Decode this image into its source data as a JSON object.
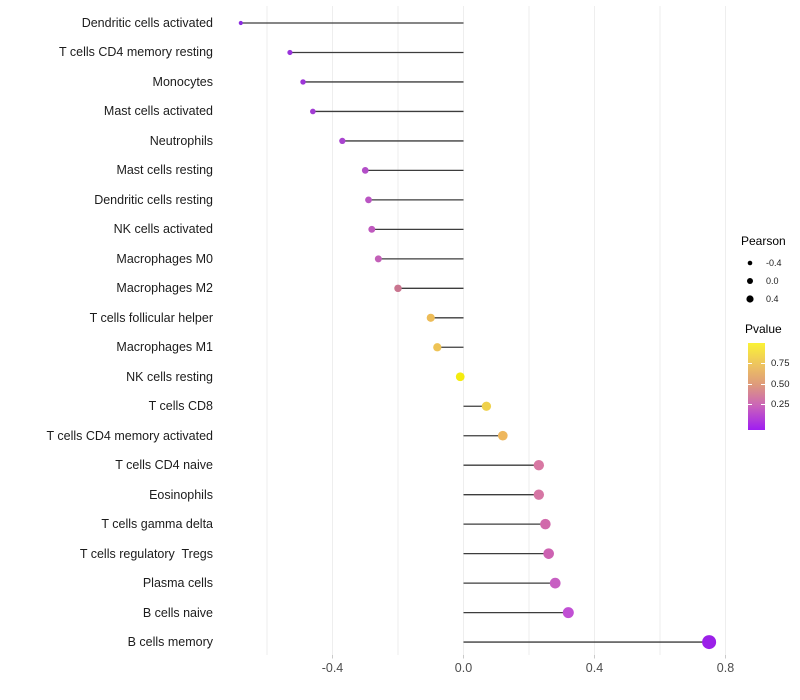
{
  "chart_data": {
    "type": "scatter",
    "variant": "lollipop",
    "title": "",
    "xlabel": "",
    "ylabel": "",
    "xlim": [
      -0.74,
      0.86
    ],
    "x_ticks": [
      -0.4,
      0.0,
      0.4,
      0.8
    ],
    "x_tick_labels": [
      "-0.4",
      "0.0",
      "0.4",
      "0.8"
    ],
    "gridline_step": 0.2,
    "grid": "vertical-only",
    "baseline": 0.0,
    "rows": [
      {
        "label": "Dendritic cells activated",
        "pearson": -0.68,
        "color": "#8b2ce0"
      },
      {
        "label": "T cells CD4 memory resting",
        "pearson": -0.53,
        "color": "#9933db"
      },
      {
        "label": "Monocytes",
        "pearson": -0.49,
        "color": "#9d36d8"
      },
      {
        "label": "Mast cells activated",
        "pearson": -0.46,
        "color": "#a23cd4"
      },
      {
        "label": "Neutrophils",
        "pearson": -0.37,
        "color": "#a944cf"
      },
      {
        "label": "Mast cells resting",
        "pearson": -0.3,
        "color": "#b34ec8"
      },
      {
        "label": "Dendritic cells resting",
        "pearson": -0.29,
        "color": "#ba55c3"
      },
      {
        "label": "NK cells activated",
        "pearson": -0.28,
        "color": "#bf59be"
      },
      {
        "label": "Macrophages M0",
        "pearson": -0.26,
        "color": "#c360b8"
      },
      {
        "label": "Macrophages M2",
        "pearson": -0.2,
        "color": "#c9758f"
      },
      {
        "label": "T cells follicular helper",
        "pearson": -0.1,
        "color": "#edbc58"
      },
      {
        "label": "Macrophages M1",
        "pearson": -0.08,
        "color": "#eec355"
      },
      {
        "label": "NK cells resting",
        "pearson": -0.01,
        "color": "#f4ec0e"
      },
      {
        "label": "T cells CD8",
        "pearson": 0.07,
        "color": "#efd14c"
      },
      {
        "label": "T cells CD4 memory activated",
        "pearson": 0.12,
        "color": "#eeb75d"
      },
      {
        "label": "T cells CD4 naive",
        "pearson": 0.23,
        "color": "#d878a3"
      },
      {
        "label": "Eosinophils",
        "pearson": 0.23,
        "color": "#d676a4"
      },
      {
        "label": "T cells gamma delta",
        "pearson": 0.25,
        "color": "#d169ab"
      },
      {
        "label": "T cells regulatory  Tregs",
        "pearson": 0.26,
        "color": "#cd62b2"
      },
      {
        "label": "Plasma cells",
        "pearson": 0.28,
        "color": "#c75fc2"
      },
      {
        "label": "B cells naive",
        "pearson": 0.32,
        "color": "#c150d4"
      },
      {
        "label": "B cells memory",
        "pearson": 0.75,
        "color": "#9b20e8"
      }
    ],
    "legend_size": {
      "title": "Pearson",
      "entries": [
        {
          "label": "-0.4",
          "value": -0.4
        },
        {
          "label": "0.0",
          "value": 0.0
        },
        {
          "label": "0.4",
          "value": 0.4
        }
      ],
      "dot_color": "#000000"
    },
    "legend_color": {
      "title": "Pvalue",
      "tick_labels": [
        "0.75",
        "0.50",
        "0.25"
      ],
      "gradient_bottom_to_top": [
        "#9f1df2",
        "#ca64b9",
        "#de9a7c",
        "#eec55e",
        "#faf235"
      ]
    },
    "style": {
      "segment_color": "#3d3d3d",
      "gridline_color": "#eeeeee",
      "tick_mark_color": "#c9c9c9",
      "axis_text_color": "#4d4d4d",
      "category_text_color": "#1c1c1c",
      "background": "#ffffff"
    }
  }
}
